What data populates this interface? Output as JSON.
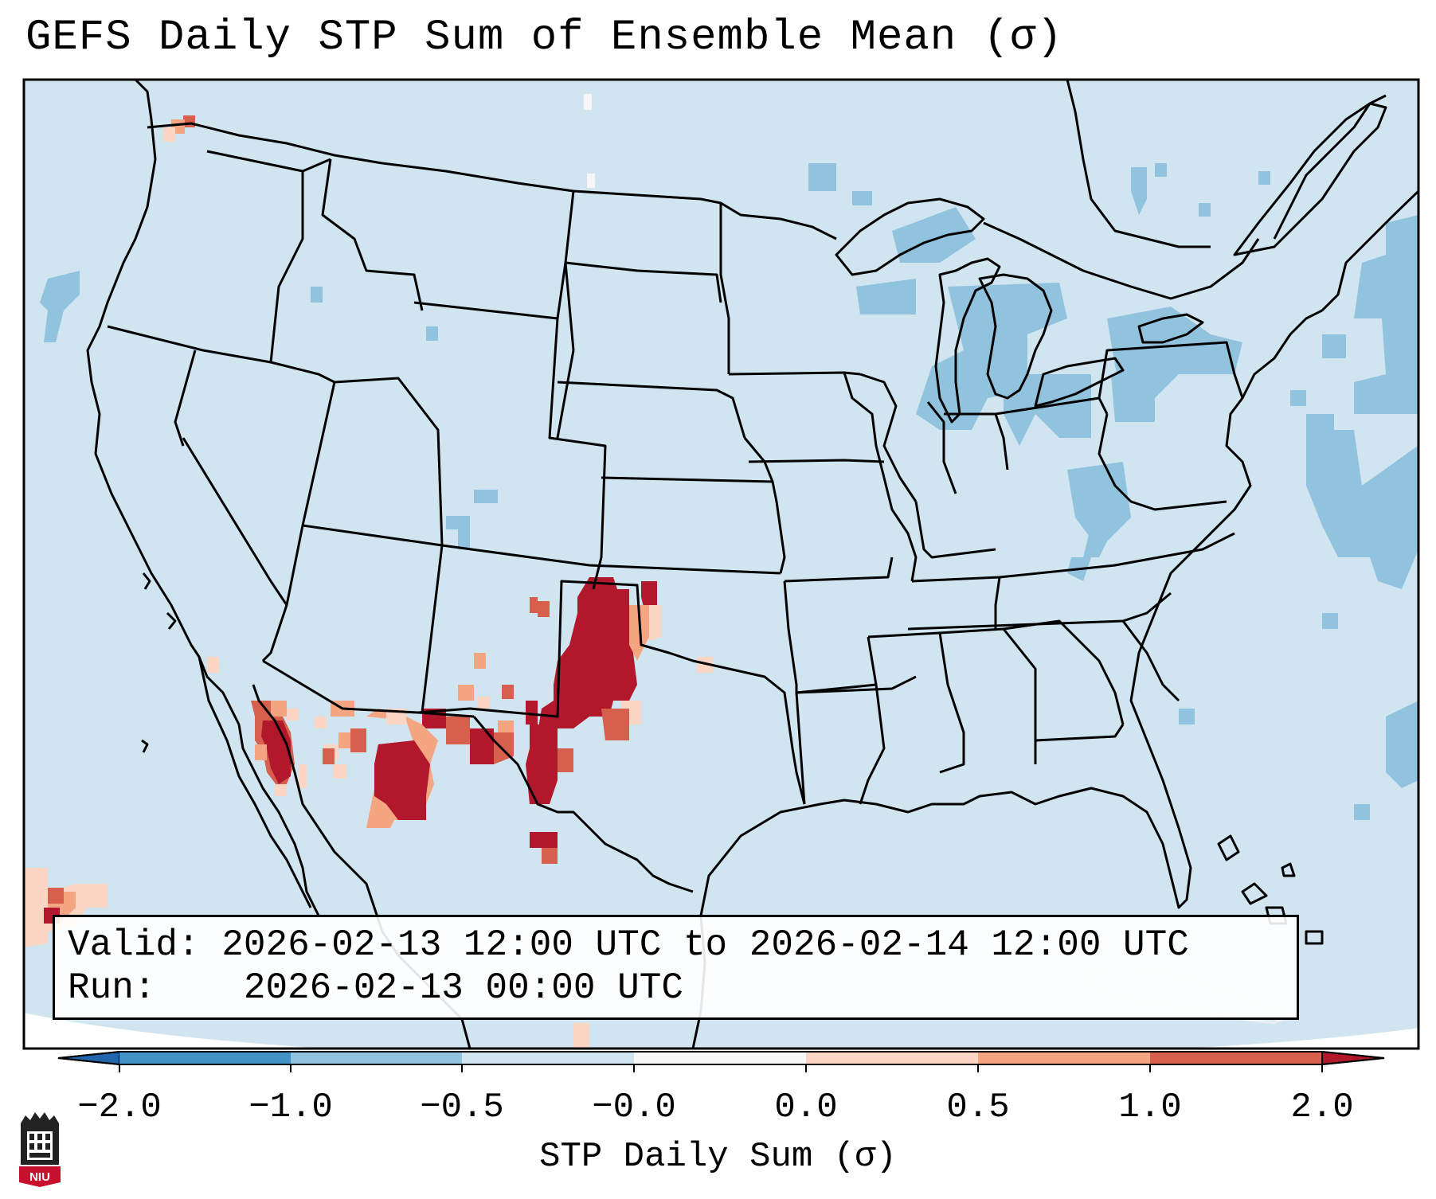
{
  "title": "GEFS Daily STP Sum of Ensemble Mean (σ)",
  "info": {
    "valid_label": "Valid:",
    "valid_range": "2026-02-13 12:00 UTC to 2026-02-14 12:00 UTC",
    "run_label": "Run:",
    "run_time": "2026-02-13 00:00 UTC"
  },
  "colorbar": {
    "label": "STP Daily Sum (σ)",
    "ticks": [
      "−2.0",
      "−1.0",
      "−0.5",
      "−0.0",
      "0.0",
      "0.5",
      "1.0",
      "2.0"
    ],
    "bins": [
      "#4292c6",
      "#91c3df",
      "#d1e5f0",
      "#f7f7f7",
      "#fbd6c4",
      "#f4a582",
      "#d6604d",
      "#b2182b"
    ],
    "under_color": "#2166ac",
    "over_color": "#b2182b"
  },
  "colors": {
    "ocean_land_fill": "#d1e5f0",
    "negative_fill": "#91c3df",
    "positive_light": "#fbd6c4",
    "positive_mid": "#f4a582",
    "positive_strong": "#d6604d",
    "positive_max": "#b2182b"
  },
  "logo": {
    "text": "NIU"
  }
}
